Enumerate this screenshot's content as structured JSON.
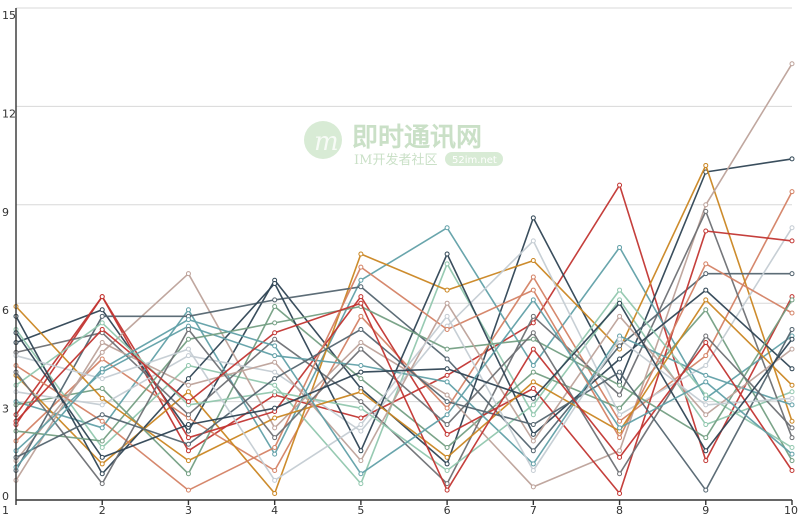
{
  "watermark": {
    "title": "即时通讯网",
    "subtitle": "IM开发者社区",
    "badge": "52im.net"
  },
  "chart_data": {
    "type": "line",
    "title": "",
    "xlabel": "",
    "ylabel": "",
    "x": [
      1,
      2,
      3,
      4,
      5,
      6,
      7,
      8,
      9,
      10
    ],
    "x_ticks": [
      "1",
      "2",
      "3",
      "4",
      "5",
      "6",
      "7",
      "8",
      "9",
      "10"
    ],
    "y_ticks": [
      "0",
      "3",
      "6",
      "9",
      "12",
      "15"
    ],
    "ylim": [
      0,
      15
    ],
    "grid": true,
    "legend": "none",
    "colors": [
      "#c23531",
      "#2f4554",
      "#61a0a8",
      "#d48265",
      "#91c7ae",
      "#749f83",
      "#ca8622",
      "#bda29a",
      "#6e7074",
      "#546570",
      "#c4ccd3"
    ],
    "series": [
      {
        "values": [
          2.3,
          6.2,
          1.5,
          3.2,
          2.5,
          3.8,
          5.4,
          9.6,
          1.2,
          6.2
        ]
      },
      {
        "values": [
          4.8,
          5.8,
          2.1,
          6.7,
          3.4,
          1.1,
          8.6,
          3.6,
          10.0,
          10.4
        ]
      },
      {
        "values": [
          3.0,
          2.2,
          5.8,
          1.4,
          6.7,
          8.3,
          4.1,
          7.7,
          3.1,
          5.0
        ]
      },
      {
        "values": [
          1.8,
          4.3,
          2.5,
          0.9,
          5.6,
          2.8,
          6.8,
          2.4,
          4.4,
          9.4
        ]
      },
      {
        "values": [
          5.2,
          1.6,
          4.1,
          3.5,
          0.5,
          7.2,
          2.6,
          6.1,
          2.3,
          3.3
        ]
      },
      {
        "values": [
          2.9,
          3.4,
          0.8,
          5.9,
          3.7,
          1.6,
          3.9,
          2.8,
          5.8,
          1.2
        ]
      },
      {
        "values": [
          3.8,
          1.1,
          3.3,
          0.2,
          7.5,
          6.4,
          7.3,
          4.6,
          10.2,
          2.4
        ]
      },
      {
        "values": [
          1.2,
          4.5,
          6.9,
          2.2,
          4.8,
          3.2,
          0.4,
          1.5,
          9.0,
          13.3
        ]
      },
      {
        "values": [
          4.5,
          5.1,
          2.6,
          4.9,
          3.0,
          0.5,
          5.6,
          3.2,
          8.8,
          1.9
        ]
      },
      {
        "values": [
          0.9,
          5.6,
          5.6,
          6.1,
          6.5,
          4.3,
          1.5,
          4.7,
          6.9,
          6.9
        ]
      },
      {
        "values": [
          3.3,
          2.9,
          4.4,
          3.9,
          2.1,
          5.3,
          7.9,
          2.6,
          4.1,
          8.3
        ]
      },
      {
        "values": [
          2.6,
          6.2,
          1.9,
          2.7,
          6.2,
          2.0,
          3.4,
          0.2,
          8.2,
          7.9
        ]
      },
      {
        "values": [
          5.6,
          0.8,
          3.7,
          6.6,
          1.5,
          7.5,
          2.0,
          4.3,
          6.4,
          4.0
        ]
      },
      {
        "values": [
          1.5,
          3.9,
          5.3,
          4.4,
          4.1,
          3.6,
          1.1,
          5.0,
          3.8,
          2.9
        ]
      },
      {
        "values": [
          4.1,
          2.4,
          0.3,
          1.6,
          7.1,
          5.2,
          6.4,
          1.9,
          7.2,
          5.7
        ]
      },
      {
        "values": [
          3.5,
          5.4,
          2.9,
          3.3,
          2.8,
          0.9,
          2.9,
          6.4,
          3.2,
          1.6
        ]
      },
      {
        "values": [
          2.1,
          1.8,
          4.9,
          5.4,
          5.9,
          4.6,
          4.9,
          3.5,
          1.9,
          6.1
        ]
      },
      {
        "values": [
          5.9,
          3.1,
          1.2,
          2.5,
          3.3,
          1.3,
          3.6,
          2.1,
          6.1,
          3.5
        ]
      },
      {
        "values": [
          0.6,
          4.8,
          3.5,
          4.2,
          1.2,
          6.0,
          1.8,
          5.6,
          2.6,
          4.6
        ]
      },
      {
        "values": [
          3.9,
          0.5,
          5.2,
          1.9,
          4.6,
          2.3,
          5.1,
          0.8,
          5.0,
          2.2
        ]
      },
      {
        "values": [
          1.3,
          2.6,
          1.7,
          3.7,
          5.2,
          3.0,
          2.3,
          3.9,
          0.3,
          5.2
        ]
      },
      {
        "values": [
          4.4,
          3.7,
          4.6,
          0.6,
          2.3,
          5.6,
          0.9,
          4.9,
          2.9,
          3.1
        ]
      },
      {
        "values": [
          2.4,
          5.2,
          3.0,
          5.1,
          6.0,
          0.3,
          4.6,
          1.3,
          4.8,
          0.9
        ]
      },
      {
        "values": [
          5.1,
          1.3,
          2.3,
          2.8,
          3.9,
          4.0,
          3.1,
          6.0,
          1.5,
          4.9
        ]
      },
      {
        "values": [
          1.0,
          4.0,
          5.5,
          4.7,
          0.8,
          2.6,
          6.1,
          2.2,
          3.6,
          1.4
        ]
      }
    ]
  }
}
